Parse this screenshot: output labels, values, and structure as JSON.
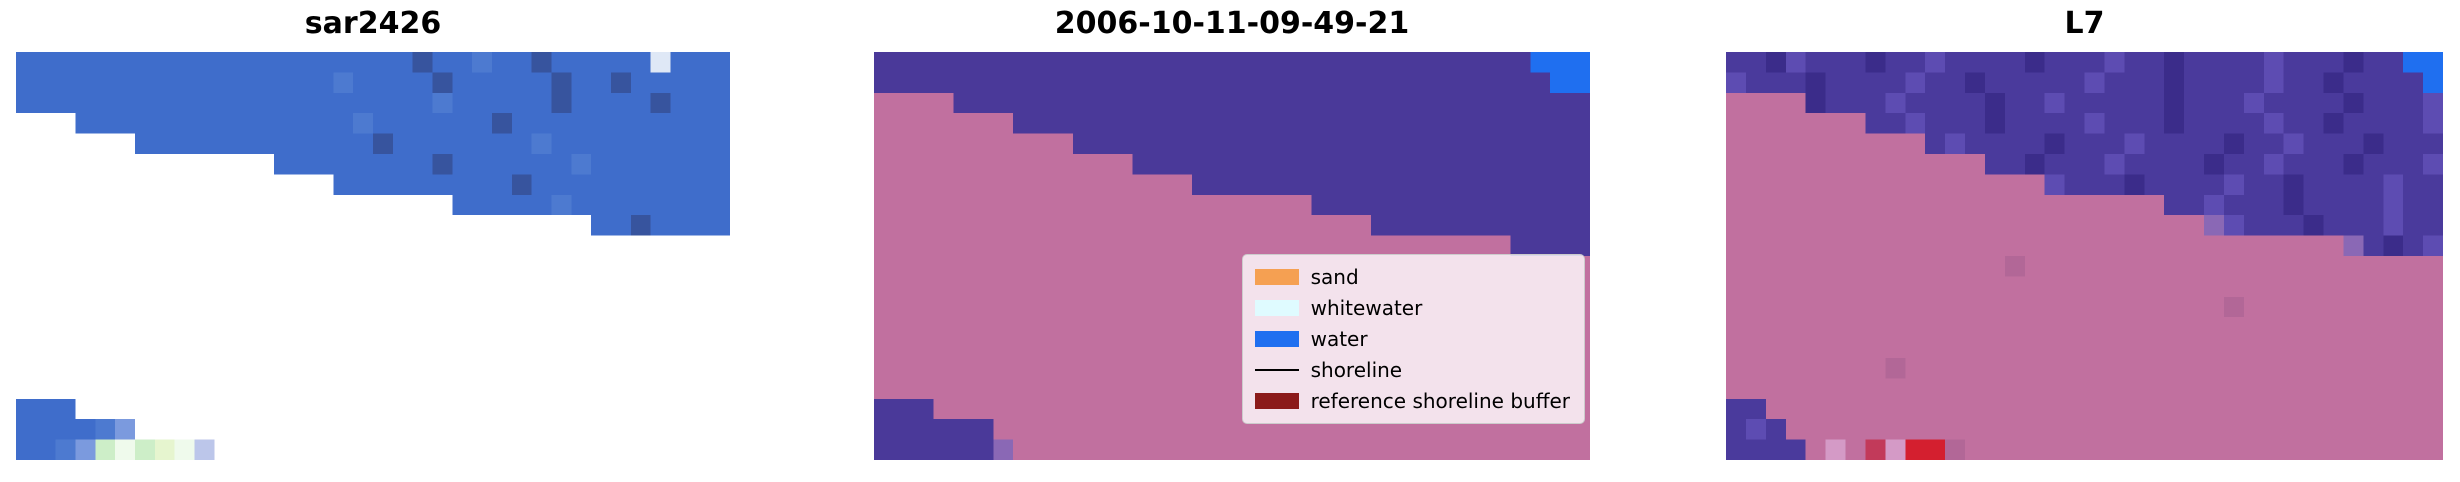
{
  "figure_background": "#ffffff",
  "chart_data": {
    "type": "heatmap",
    "description_colors": {
      "sar_water_blue": "#3f6dcb",
      "class_water_purple": "#4a3999",
      "class_land_mauve": "#c1709f",
      "open_water_blue": "#1f6ff0"
    },
    "panels": [
      {
        "id": "sar",
        "title": "sar2426",
        "grid_cols": 36,
        "grid_rows": 20,
        "palette": {
          "b": "#3f6dcb",
          "d": "#37549e",
          "e": "#4d7ad0",
          "l": "#7b9ade",
          "w": "#dfe8f6",
          "g": "#cdeec8",
          "h": "#effaec",
          "y": "#e6f5cf",
          "v": "#bcc6ea",
          ".": "#ffffff"
        },
        "rows": [
          "b20d1b2e1b2d1b5w1b3",
          "b16e1b4d1b5d1b2d1b5",
          "b21e1b5d1b4d1b3",
          ".3b14e1b6d1b11",
          ".6b12d1b7e1b9",
          ".13b8d1b6e1b7",
          ".16b9d1b10",
          ".22b5e1b8",
          ".29b2d1b4",
          ".36",
          ".36",
          ".36",
          ".36",
          ".36",
          ".36",
          ".36",
          ".36",
          "b3.33",
          "b4e1l1.30",
          "b2e1l1g1h1g1y1h1v1.26"
        ]
      },
      {
        "id": "classified",
        "title": "2006-10-11-09-49-21",
        "grid_cols": 36,
        "grid_rows": 20,
        "palette": {
          "p": "#4a3999",
          "q": "#8a68b5",
          "m": "#c1709f",
          "u": "#1f6ff0"
        },
        "rows": [
          "p33u3",
          "p34u2",
          "m4p32",
          "m7p29",
          "m10p26",
          "m13p23",
          "m16p20",
          "m22p14",
          "m25p11",
          "m32p4",
          "m36",
          "m36",
          "m36",
          "m36",
          "m36",
          "m36",
          "m36",
          "p3m33",
          "p6m30",
          "p6q1m29"
        ]
      },
      {
        "id": "l7",
        "title": "L7",
        "grid_cols": 36,
        "grid_rows": 20,
        "palette": {
          "p": "#4a3a9c",
          "P": "#3b2c8a",
          "v": "#5d4cb2",
          "q": "#8a68b5",
          "m": "#c1709f",
          "M": "#b26797",
          "u": "#1f6ff0",
          "k": "#d49ac6",
          "r": "#c23a5a",
          "R": "#d41f2f"
        },
        "rows": [
          "p2P1v1p3P1p2v1p4P1p3v1p2P1p4v1p3P1p2u2",
          "v1p3P1p4v1p2P1p5v1p3P1p4v1p2P1p4u1",
          "m4P1p3v1p4P1p2v1p5P1p3v1p4P1p3v1",
          "m7p2v1p3P1p4v1p3P1p4v1p2P1p4v1",
          "m10p1v1p4P1p3v1p4P1p2v1p3P1p3",
          "m13p2P1p3v1p4P1p2v1p3P1p3v1",
          "m16v1p3P1p4v1p2P1p4v1p2",
          "m22p2v1p3P1p4v1p2",
          "m24q1v1p3P1p3v1p2",
          "m31q1p1P1p1v1",
          "m14M1m21",
          "m36",
          "m25M1m10",
          "m36",
          "m36",
          "m8M1m27",
          "m36",
          "p2m34",
          "p1v1p1m33",
          "p4m1k1m1r1k1R2M1m24"
        ]
      }
    ],
    "legend": {
      "entries": [
        {
          "label": "sand",
          "color": "#f5a052",
          "type": "patch"
        },
        {
          "label": "whitewater",
          "color": "#dffbff",
          "type": "patch"
        },
        {
          "label": "water",
          "color": "#1f6ff0",
          "type": "patch"
        },
        {
          "label": "shoreline",
          "color": "#000000",
          "type": "line"
        },
        {
          "label": "reference shoreline buffer",
          "color": "#8b1a1a",
          "type": "patch"
        }
      ]
    }
  }
}
